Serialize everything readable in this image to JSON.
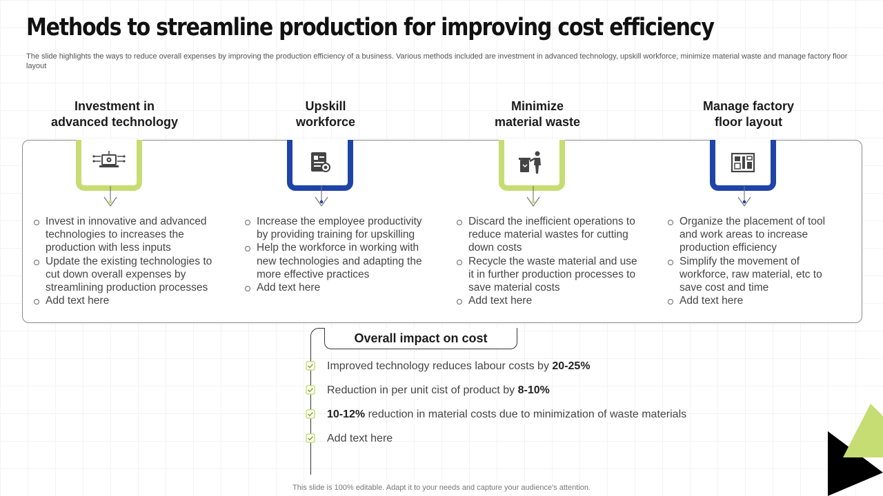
{
  "title": "Methods to streamline production for improving cost efficiency",
  "subtitle": "The slide highlights the ways to reduce overall expenses by improving the production efficiency of a business. Various methods included are investment in advanced technology, upskill workforce, minimize material waste and manage factory floor layout",
  "columns": [
    {
      "heading_line1": "Investment in",
      "heading_line2": "advanced technology",
      "icon": "computer-settings-icon",
      "accent": "#c5dd72",
      "bullets": [
        "Invest in innovative and advanced technologies to increases the production with less inputs",
        "Update the existing technologies to cut down overall expenses by streamlining production processes",
        "Add text here"
      ]
    },
    {
      "heading_line1": "Upskill",
      "heading_line2": "workforce",
      "icon": "certificate-icon",
      "accent": "#1f44a8",
      "bullets": [
        "Increase the employee productivity by providing training for upskilling",
        "Help the workforce in working with new technologies and adapting the more effective practices",
        "Add text here"
      ]
    },
    {
      "heading_line1": "Minimize",
      "heading_line2": "material waste",
      "icon": "person-trash-icon",
      "accent": "#c5dd72",
      "bullets": [
        "Discard the inefficient operations to reduce material wastes for cutting down costs",
        "Recycle the waste material and use it in further production processes to save material costs",
        "Add text here"
      ]
    },
    {
      "heading_line1": "Manage factory",
      "heading_line2": "floor layout",
      "icon": "floor-layout-icon",
      "accent": "#1f44a8",
      "bullets": [
        "Organize the placement of tool and work areas to increase production efficiency",
        "Simplify the movement of workforce, raw material, etc to save cost and time",
        "Add text here"
      ]
    }
  ],
  "impact": {
    "heading": "Overall impact on cost",
    "items": [
      {
        "pre": "Improved technology reduces labour costs by ",
        "bold": "20-25%",
        "post": ""
      },
      {
        "pre": "Reduction in per unit cist of product by ",
        "bold": "8-10%",
        "post": ""
      },
      {
        "pre": "",
        "bold": "10-12%",
        "post": " reduction in material costs due to minimization of waste materials"
      },
      {
        "pre": "Add text here",
        "bold": "",
        "post": ""
      }
    ]
  },
  "footer": "This slide is 100% editable. Adapt it to your needs and capture your audience's attention.",
  "colors": {
    "green": "#c5dd72",
    "blue": "#1f44a8",
    "black": "#000000"
  }
}
